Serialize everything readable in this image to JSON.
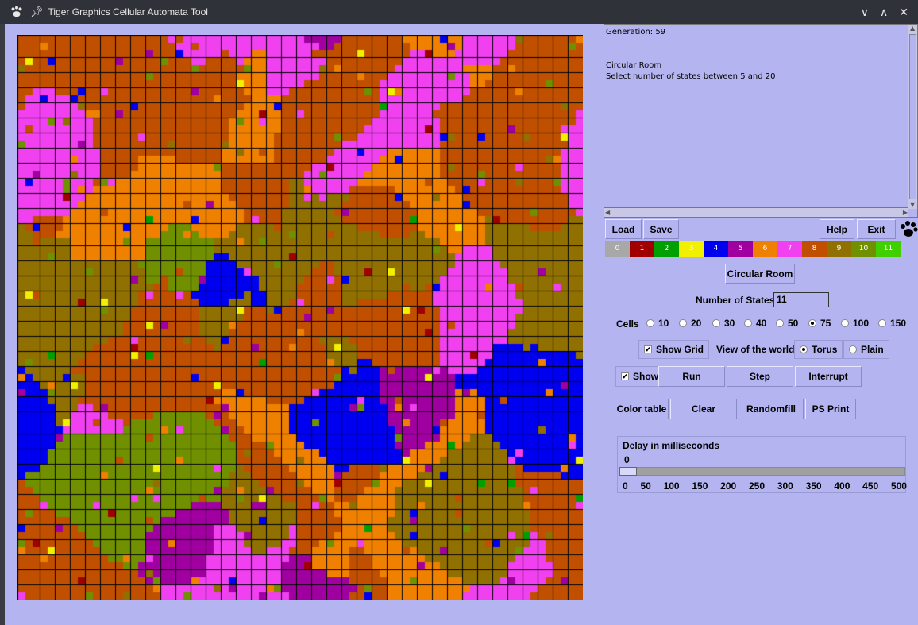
{
  "window": {
    "title": "Tiger Graphics Cellular Automata Tool",
    "controls": [
      "∨",
      "∧",
      "✕"
    ]
  },
  "messages": {
    "lines": [
      "Generation: 59",
      "",
      "",
      "Circular Room",
      "Select number of states between 5 and 20"
    ]
  },
  "toolbar": {
    "load_label": "Load",
    "save_label": "Save",
    "help_label": "Help",
    "exit_label": "Exit"
  },
  "colors": [
    {
      "label": "0",
      "hex": "#a8a8a8"
    },
    {
      "label": "1",
      "hex": "#a00000"
    },
    {
      "label": "2",
      "hex": "#00a000"
    },
    {
      "label": "3",
      "hex": "#f0f000"
    },
    {
      "label": "4",
      "hex": "#0000f0"
    },
    {
      "label": "5",
      "hex": "#a000a0"
    },
    {
      "label": "6",
      "hex": "#f08000"
    },
    {
      "label": "7",
      "hex": "#f040f0"
    },
    {
      "label": "8",
      "hex": "#c05000"
    },
    {
      "label": "9",
      "hex": "#907000"
    },
    {
      "label": "10",
      "hex": "#709000"
    },
    {
      "label": "11",
      "hex": "#40d000"
    }
  ],
  "rule_button": "Circular Room",
  "states": {
    "label": "Number of States",
    "value": "11"
  },
  "cells": {
    "label": "Cells",
    "options": [
      "10",
      "20",
      "30",
      "40",
      "50",
      "75",
      "100",
      "150"
    ],
    "selected": "75"
  },
  "grid_options": {
    "show_grid_label": "Show Grid",
    "show_grid": true,
    "view_label": "View of the world",
    "torus_label": "Torus",
    "plain_label": "Plain",
    "view": "Torus"
  },
  "run_row": {
    "show_label": "Show",
    "show": true,
    "run": "Run",
    "step": "Step",
    "interrupt": "Interrupt"
  },
  "tools_row": {
    "color_table": "Color table",
    "clear": "Clear",
    "randomfill": "Randomfill",
    "ps_print": "PS Print"
  },
  "delay": {
    "label": "Delay in milliseconds",
    "value": "0",
    "ticks": [
      "0",
      "50",
      "100",
      "150",
      "200",
      "250",
      "300",
      "350",
      "400",
      "450",
      "500"
    ]
  }
}
